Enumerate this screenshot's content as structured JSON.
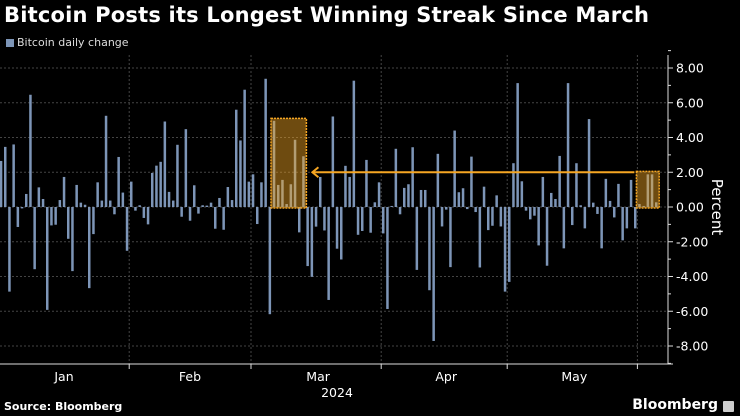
{
  "chart_data": {
    "type": "bar",
    "title": "Bitcoin Posts its Longest Winning Streak Since March",
    "series": [
      {
        "name": "Bitcoin daily change",
        "color": "#7d95b7",
        "values": [
          2.65,
          3.46,
          -4.87,
          3.6,
          -1.15,
          -0.08,
          0.75,
          6.46,
          -3.58,
          1.13,
          0.46,
          -5.92,
          -1.06,
          -1.02,
          0.4,
          1.73,
          -1.83,
          -3.69,
          1.27,
          0.25,
          0.13,
          -4.67,
          -1.56,
          1.42,
          0.37,
          5.25,
          0.37,
          -0.42,
          2.88,
          0.83,
          -2.52,
          1.46,
          -0.21,
          0.1,
          -0.63,
          -1.0,
          1.96,
          2.38,
          2.6,
          4.92,
          0.87,
          0.37,
          3.58,
          -0.56,
          4.48,
          -0.79,
          1.25,
          -0.38,
          0.1,
          0.08,
          0.25,
          -1.25,
          0.52,
          -1.31,
          1.15,
          0.4,
          5.6,
          3.83,
          6.75,
          1.46,
          1.88,
          -0.98,
          1.42,
          7.38,
          -6.17,
          4.96,
          1.27,
          1.56,
          0.17,
          1.31,
          3.87,
          -1.46,
          2.92,
          -3.4,
          -4.02,
          -1.13,
          1.73,
          -1.35,
          -5.35,
          5.21,
          -2.4,
          -3.02,
          2.37,
          1.73,
          7.27,
          -1.6,
          -1.38,
          2.71,
          -1.48,
          0.27,
          1.42,
          -1.52,
          -5.87,
          0.06,
          3.35,
          -0.42,
          1.1,
          1.31,
          3.44,
          -3.62,
          0.98,
          0.98,
          -4.79,
          -7.71,
          3.06,
          -1.12,
          -0.15,
          -3.46,
          4.4,
          0.85,
          1.08,
          -0.12,
          2.9,
          -0.29,
          -3.48,
          1.17,
          -1.33,
          -1.08,
          0.67,
          -1.12,
          -4.87,
          -4.31,
          2.52,
          7.13,
          1.48,
          -0.21,
          -0.71,
          -0.5,
          -2.21,
          1.73,
          -3.38,
          0.81,
          0.46,
          2.94,
          -2.38,
          7.13,
          -1.04,
          2.52,
          0.1,
          -1.23,
          5.06,
          0.25,
          -0.4,
          -2.38,
          1.62,
          0.35,
          -0.6,
          1.33,
          -1.92,
          -1.23,
          1.56,
          -1.23,
          0.17,
          0.06,
          1.88,
          1.88,
          0.27
        ]
      }
    ],
    "xlabel": "2024",
    "xticks": [
      "Jan",
      "Feb",
      "Mar",
      "Apr",
      "May"
    ],
    "ylabel": "Percent",
    "yticks": [
      "8.00",
      "6.00",
      "4.00",
      "2.00",
      "0.00",
      "-2.00",
      "-4.00",
      "-6.00",
      "-8.00"
    ],
    "ylim": [
      -8.8,
      8.8
    ],
    "axis_side": "right",
    "grid": true,
    "legend": "top-left",
    "highlight_color": "#f5a623",
    "annotations": [
      "March winning streak highlighted",
      "current winning streak highlighted with arrow pointing back to March"
    ]
  },
  "footer": {
    "source": "Source: Bloomberg",
    "logo": "Bloomberg"
  }
}
